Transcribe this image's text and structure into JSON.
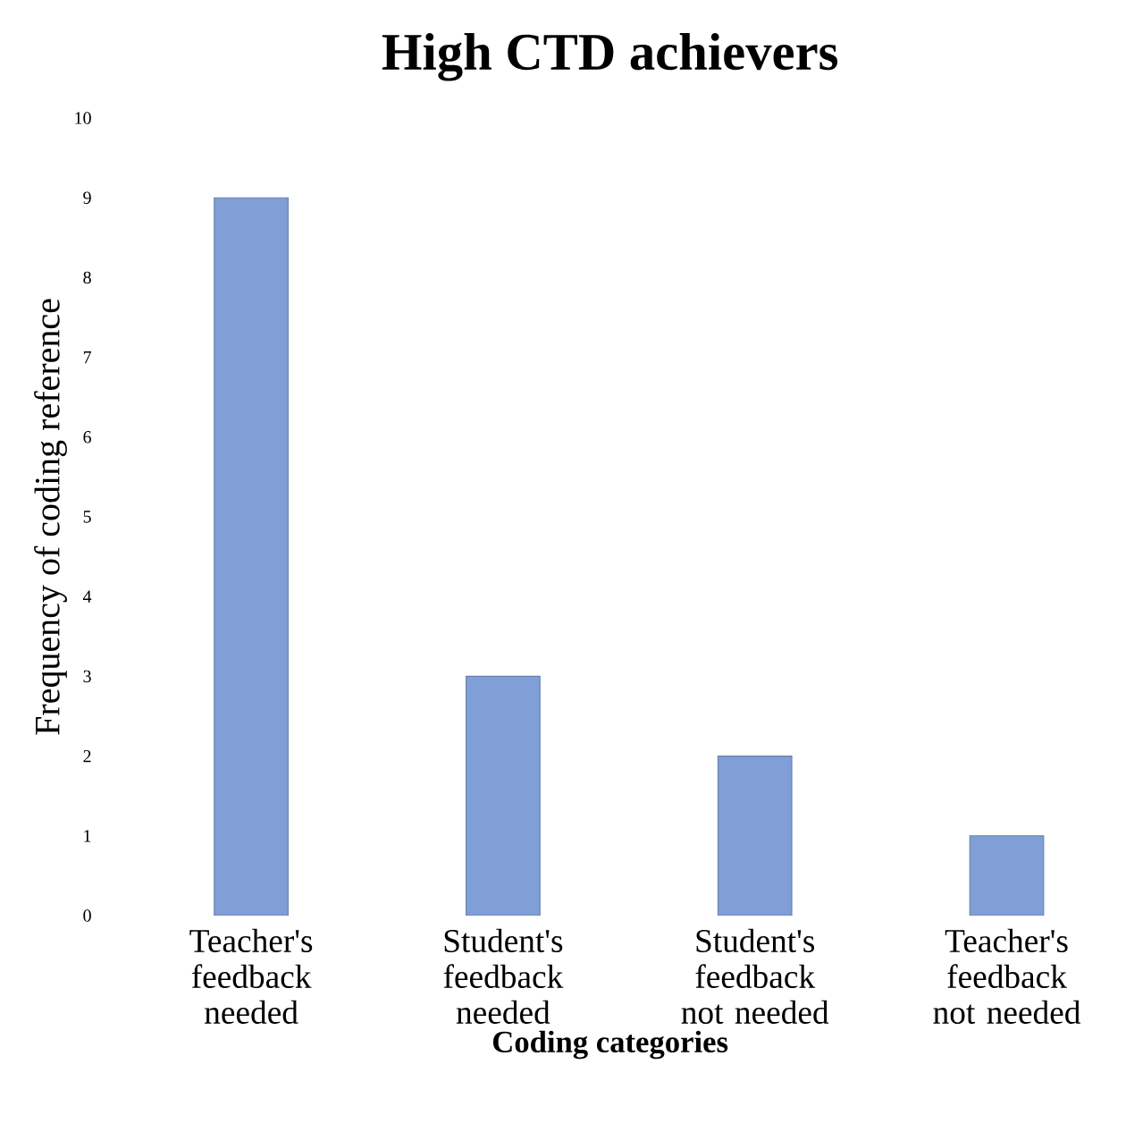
{
  "chart_data": {
    "type": "bar",
    "title": "High CTD achievers",
    "categories": [
      "Teacher's feedback needed",
      "Student's feedback needed",
      "Student's feedback not needed",
      "Teacher's feedback not needed"
    ],
    "values": [
      9,
      3,
      2,
      1
    ],
    "color": "#7f9fd6",
    "xlabel": "Coding categories",
    "ylabel": "Frequency of coding  reference",
    "ylim": [
      0,
      10
    ],
    "yticks": [
      0,
      1,
      2,
      3,
      4,
      5,
      6,
      7,
      8,
      9,
      10
    ],
    "grid": false
  }
}
